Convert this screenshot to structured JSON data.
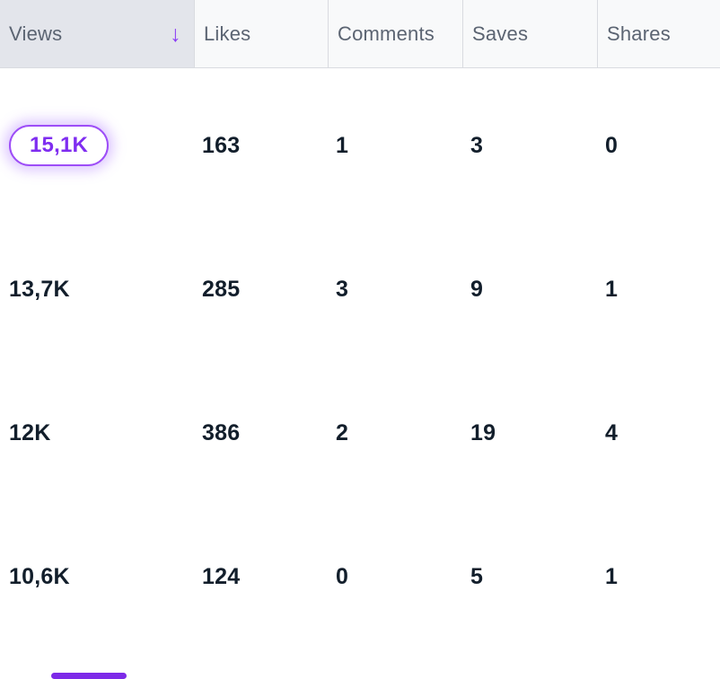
{
  "table": {
    "columns": [
      {
        "label": "Views",
        "sorted": "descending"
      },
      {
        "label": "Likes"
      },
      {
        "label": "Comments"
      },
      {
        "label": "Saves"
      },
      {
        "label": "Shares"
      }
    ],
    "rows": [
      {
        "views": "15,1K",
        "likes": "163",
        "comments": "1",
        "saves": "3",
        "shares": "0",
        "highlighted": true
      },
      {
        "views": "13,7K",
        "likes": "285",
        "comments": "3",
        "saves": "9",
        "shares": "1",
        "highlighted": false
      },
      {
        "views": "12K",
        "likes": "386",
        "comments": "2",
        "saves": "19",
        "shares": "4",
        "highlighted": false
      },
      {
        "views": "10,6K",
        "likes": "124",
        "comments": "0",
        "saves": "5",
        "shares": "1",
        "highlighted": false
      }
    ]
  },
  "icons": {
    "sort_descending": "↓"
  },
  "colors": {
    "accent_purple": "#8B3DF5",
    "pill_border": "#9D4DF7",
    "pill_text": "#7F2DF0",
    "header_active_bg": "#E3E5EB",
    "header_bg": "#F8F9FA",
    "header_text": "#5B6472",
    "divider": "#D9DBE0",
    "value_text": "#121E2B",
    "scroll_indicator": "#7D2AE8"
  }
}
